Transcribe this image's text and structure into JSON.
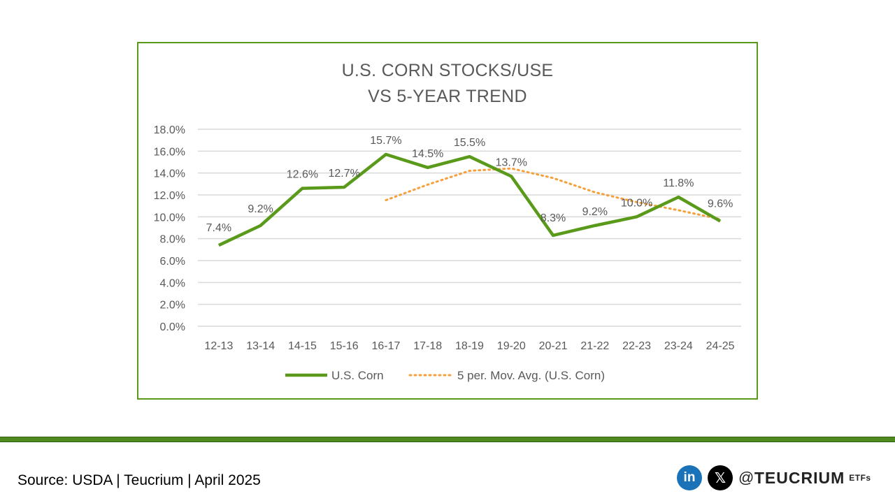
{
  "chart_data": {
    "type": "line",
    "title_lines": [
      "U.S. CORN STOCKS/USE",
      "VS 5-YEAR TREND"
    ],
    "categories": [
      "12-13",
      "13-14",
      "14-15",
      "15-16",
      "16-17",
      "17-18",
      "18-19",
      "19-20",
      "20-21",
      "21-22",
      "22-23",
      "23-24",
      "24-25"
    ],
    "series": [
      {
        "name": "U.S. Corn",
        "values": [
          7.4,
          9.2,
          12.6,
          12.7,
          15.7,
          14.5,
          15.5,
          13.7,
          8.3,
          9.2,
          10.0,
          11.8,
          9.6
        ],
        "labels": [
          "7.4%",
          "9.2%",
          "12.6%",
          "12.7%",
          "15.7%",
          "14.5%",
          "15.5%",
          "13.7%",
          "8.3%",
          "9.2%",
          "10.0%",
          "11.8%",
          "9.6%"
        ],
        "color": "#5a9a1a",
        "style": "solid"
      },
      {
        "name": "5 per. Mov. Avg. (U.S. Corn)",
        "values": [
          null,
          null,
          null,
          null,
          11.52,
          12.94,
          14.2,
          14.42,
          13.54,
          12.24,
          11.34,
          10.6,
          9.78
        ],
        "color": "#f5a03c",
        "style": "dotted"
      }
    ],
    "ylim": [
      0,
      18
    ],
    "yticks": [
      0,
      2,
      4,
      6,
      8,
      10,
      12,
      14,
      16,
      18
    ],
    "ytick_labels": [
      "0.0%",
      "2.0%",
      "4.0%",
      "6.0%",
      "8.0%",
      "10.0%",
      "12.0%",
      "14.0%",
      "16.0%",
      "18.0%"
    ],
    "grid": true,
    "legend_position": "bottom"
  },
  "footer": {
    "source_text": "Source: USDA | Teucrium | April 2025",
    "linkedin_glyph": "in",
    "x_glyph": "𝕏",
    "handle_prefix": "@",
    "brand_name": "TEUCRIUM",
    "brand_suffix": "ETFs"
  },
  "colors": {
    "frame_border": "#5a9a1a",
    "footer_bar": "#4f8a1f",
    "linkedin": "#1a73b8"
  }
}
